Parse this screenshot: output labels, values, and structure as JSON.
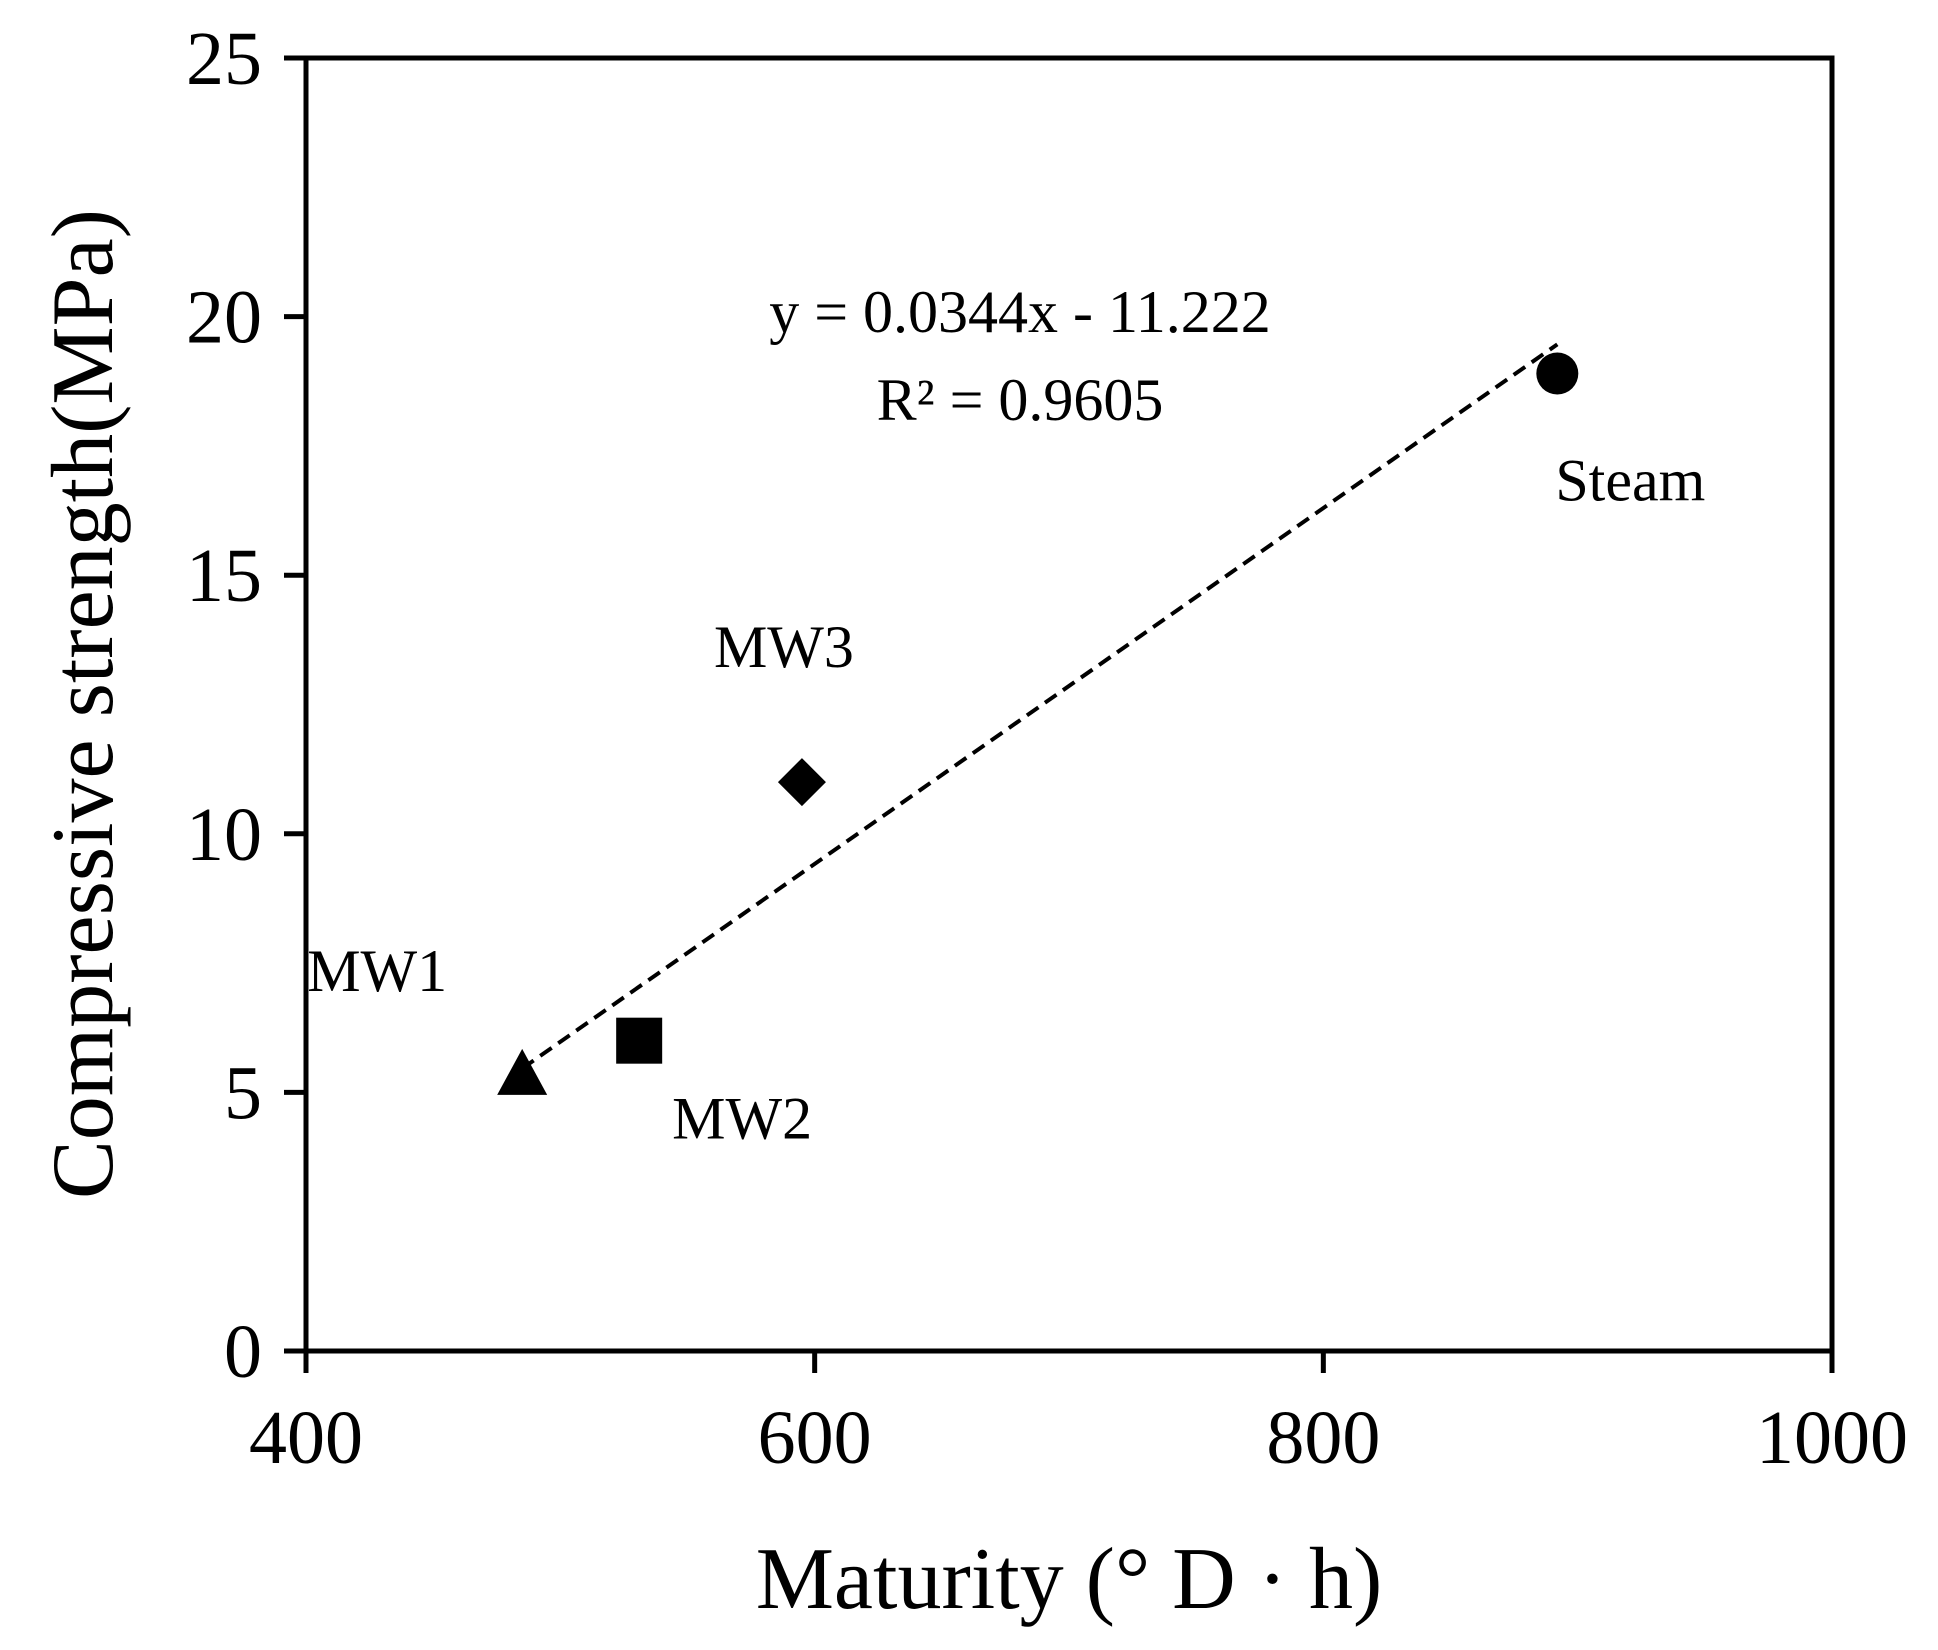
{
  "chart_data": {
    "type": "scatter",
    "title": "",
    "xlabel": "Maturity (° D · h)",
    "ylabel": "Compressive strength(MPa)",
    "xlim": [
      400,
      1000
    ],
    "ylim": [
      0,
      25
    ],
    "xticks": [
      400,
      600,
      800,
      1000
    ],
    "xtick_labels": [
      "400",
      "600",
      "800",
      "1000"
    ],
    "yticks": [
      0,
      5,
      10,
      15,
      20,
      25
    ],
    "ytick_labels": [
      "0",
      "5",
      "10",
      "15",
      "20",
      "25"
    ],
    "grid": false,
    "series": [
      {
        "name": "MW1",
        "marker": "triangle",
        "x": 485,
        "y": 5.3
      },
      {
        "name": "MW2",
        "marker": "square",
        "x": 531,
        "y": 6.0
      },
      {
        "name": "MW3",
        "marker": "diamond",
        "x": 595,
        "y": 11.0
      },
      {
        "name": "Steam",
        "marker": "circle",
        "x": 892,
        "y": 18.9
      }
    ],
    "trendline": {
      "style": "dashed",
      "x": [
        485,
        892
      ],
      "equation": "y = 0.0344x  - 11.222",
      "r2": "R² = 0.9605",
      "slope": 0.0344,
      "intercept": -11.222
    },
    "colors": {
      "ink": "#000000",
      "background": "#ffffff"
    }
  }
}
